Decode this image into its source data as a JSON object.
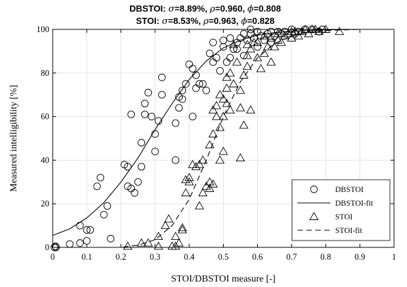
{
  "chart_data": {
    "type": "scatter",
    "title_lines": [
      {
        "name": "DBSTOI",
        "sigma": "8.89%",
        "rho": "0.960",
        "phi": "0.808"
      },
      {
        "name": "STOI",
        "sigma": "8.53%",
        "rho": "0.963",
        "phi": "0.828"
      }
    ],
    "title_symbols": {
      "sigma": "σ",
      "rho": "ρ",
      "phi": "ϕ",
      "eq": "=",
      "sep": ", "
    },
    "xlabel": "STOI/DBSTOI measure [-]",
    "ylabel": "Measured intelligibility [%]",
    "xlim": [
      0,
      1
    ],
    "ylim": [
      0,
      100
    ],
    "xticks": [
      "0",
      "0.1",
      "0.2",
      "0.3",
      "0.4",
      "0.5",
      "0.6",
      "0.7",
      "0.8",
      "0.9",
      "1"
    ],
    "yticks": [
      "0",
      "20",
      "40",
      "60",
      "80",
      "100"
    ],
    "grid": true,
    "legend_position": "bottom-right",
    "legend": [
      {
        "label": "DBSTOI",
        "marker": "circle"
      },
      {
        "label": "DBSTOI-fit",
        "line": "solid"
      },
      {
        "label": "STOI",
        "marker": "triangle"
      },
      {
        "label": "STOI-fit",
        "line": "dashed"
      }
    ],
    "series": [
      {
        "name": "DBSTOI",
        "marker": "circle",
        "points": [
          [
            0.005,
            0
          ],
          [
            0.01,
            0
          ],
          [
            0.008,
            0.5
          ],
          [
            0.05,
            1.5
          ],
          [
            0.08,
            2
          ],
          [
            0.1,
            3
          ],
          [
            0.08,
            10
          ],
          [
            0.1,
            8
          ],
          [
            0.11,
            8
          ],
          [
            0.13,
            28
          ],
          [
            0.14,
            32
          ],
          [
            0.15,
            15
          ],
          [
            0.16,
            19
          ],
          [
            0.17,
            4
          ],
          [
            0.21,
            38
          ],
          [
            0.22,
            37
          ],
          [
            0.22,
            28
          ],
          [
            0.23,
            27
          ],
          [
            0.24,
            25
          ],
          [
            0.25,
            30
          ],
          [
            0.26,
            37
          ],
          [
            0.26,
            48
          ],
          [
            0.27,
            61
          ],
          [
            0.23,
            61
          ],
          [
            0.27,
            66
          ],
          [
            0.28,
            71
          ],
          [
            0.29,
            60
          ],
          [
            0.3,
            52
          ],
          [
            0.31,
            58
          ],
          [
            0.32,
            70
          ],
          [
            0.3,
            44
          ],
          [
            0.32,
            78
          ],
          [
            0.36,
            40
          ],
          [
            0.36,
            57
          ],
          [
            0.37,
            64
          ],
          [
            0.37,
            69
          ],
          [
            0.38,
            72
          ],
          [
            0.38,
            68
          ],
          [
            0.39,
            75
          ],
          [
            0.4,
            84
          ],
          [
            0.41,
            82
          ],
          [
            0.41,
            60
          ],
          [
            0.42,
            73
          ],
          [
            0.42,
            79
          ],
          [
            0.43,
            75
          ],
          [
            0.44,
            75
          ],
          [
            0.45,
            72
          ],
          [
            0.46,
            89
          ],
          [
            0.47,
            85
          ],
          [
            0.48,
            87
          ],
          [
            0.49,
            81
          ],
          [
            0.5,
            95
          ],
          [
            0.5,
            92
          ],
          [
            0.51,
            85
          ],
          [
            0.52,
            96
          ],
          [
            0.52,
            87
          ],
          [
            0.53,
            91
          ],
          [
            0.54,
            94
          ],
          [
            0.55,
            96
          ],
          [
            0.56,
            98
          ],
          [
            0.57,
            95
          ],
          [
            0.58,
            98
          ],
          [
            0.59,
            96
          ],
          [
            0.6,
            99
          ],
          [
            0.61,
            97
          ],
          [
            0.62,
            95
          ],
          [
            0.63,
            98
          ],
          [
            0.64,
            99
          ],
          [
            0.65,
            97
          ],
          [
            0.66,
            99
          ],
          [
            0.67,
            98
          ],
          [
            0.68,
            99
          ],
          [
            0.7,
            100
          ],
          [
            0.71,
            98
          ],
          [
            0.72,
            99
          ],
          [
            0.74,
            100
          ],
          [
            0.76,
            100
          ],
          [
            0.78,
            99
          ],
          [
            0.79,
            100
          ],
          [
            0.6,
            92
          ],
          [
            0.56,
            88
          ],
          [
            0.64,
            94
          ],
          [
            0.54,
            91
          ],
          [
            0.47,
            94
          ],
          [
            0.58,
            100
          ]
        ]
      },
      {
        "name": "DBSTOI-fit",
        "line": "solid",
        "points": [
          [
            0.0,
            5.5
          ],
          [
            0.05,
            8.5
          ],
          [
            0.1,
            13.5
          ],
          [
            0.15,
            20.5
          ],
          [
            0.2,
            30
          ],
          [
            0.25,
            41
          ],
          [
            0.3,
            54
          ],
          [
            0.35,
            66
          ],
          [
            0.4,
            77
          ],
          [
            0.45,
            85.5
          ],
          [
            0.5,
            91.5
          ],
          [
            0.55,
            95
          ],
          [
            0.6,
            97.3
          ],
          [
            0.65,
            98.5
          ],
          [
            0.7,
            99.2
          ],
          [
            0.8,
            99.8
          ],
          [
            0.9,
            100
          ],
          [
            1.0,
            100
          ]
        ]
      },
      {
        "name": "STOI",
        "marker": "triangle",
        "points": [
          [
            0.22,
            0.5
          ],
          [
            0.26,
            2
          ],
          [
            0.28,
            2
          ],
          [
            0.31,
            0.5
          ],
          [
            0.31,
            5
          ],
          [
            0.33,
            10
          ],
          [
            0.34,
            13
          ],
          [
            0.35,
            0.5
          ],
          [
            0.36,
            0.5
          ],
          [
            0.36,
            5
          ],
          [
            0.37,
            2
          ],
          [
            0.38,
            8
          ],
          [
            0.38,
            9
          ],
          [
            0.39,
            25
          ],
          [
            0.39,
            31
          ],
          [
            0.4,
            30
          ],
          [
            0.4,
            32
          ],
          [
            0.41,
            38
          ],
          [
            0.42,
            37
          ],
          [
            0.43,
            38
          ],
          [
            0.43,
            19
          ],
          [
            0.44,
            25
          ],
          [
            0.44,
            40
          ],
          [
            0.45,
            28
          ],
          [
            0.46,
            30
          ],
          [
            0.46,
            47
          ],
          [
            0.47,
            52
          ],
          [
            0.47,
            63
          ],
          [
            0.48,
            60
          ],
          [
            0.48,
            65
          ],
          [
            0.49,
            55
          ],
          [
            0.49,
            70
          ],
          [
            0.5,
            44
          ],
          [
            0.5,
            60
          ],
          [
            0.5,
            68
          ],
          [
            0.51,
            73
          ],
          [
            0.51,
            78
          ],
          [
            0.52,
            63
          ],
          [
            0.52,
            80
          ],
          [
            0.53,
            75
          ],
          [
            0.54,
            85
          ],
          [
            0.55,
            41
          ],
          [
            0.55,
            64
          ],
          [
            0.56,
            56
          ],
          [
            0.56,
            79
          ],
          [
            0.57,
            83
          ],
          [
            0.57,
            88
          ],
          [
            0.58,
            63
          ],
          [
            0.58,
            91
          ],
          [
            0.6,
            87
          ],
          [
            0.6,
            94
          ],
          [
            0.61,
            82
          ],
          [
            0.62,
            89
          ],
          [
            0.63,
            92
          ],
          [
            0.64,
            85
          ],
          [
            0.64,
            96
          ],
          [
            0.65,
            92
          ],
          [
            0.66,
            95
          ],
          [
            0.67,
            94
          ],
          [
            0.68,
            97
          ],
          [
            0.69,
            98
          ],
          [
            0.7,
            96
          ],
          [
            0.71,
            99
          ],
          [
            0.72,
            97
          ],
          [
            0.73,
            99
          ],
          [
            0.74,
            100
          ],
          [
            0.75,
            98
          ],
          [
            0.76,
            100
          ],
          [
            0.77,
            100
          ],
          [
            0.78,
            99
          ],
          [
            0.8,
            100
          ],
          [
            0.84,
            99
          ],
          [
            0.53,
            93
          ],
          [
            0.59,
            94
          ],
          [
            0.62,
            97
          ],
          [
            0.66,
            98
          ],
          [
            0.7,
            99
          ],
          [
            0.47,
            29
          ],
          [
            0.46,
            27
          ],
          [
            0.49,
            40
          ],
          [
            0.51,
            66
          ],
          [
            0.55,
            72
          ],
          [
            0.57,
            93
          ]
        ]
      },
      {
        "name": "STOI-fit",
        "line": "dashed",
        "points": [
          [
            0.05,
            0
          ],
          [
            0.2,
            0
          ],
          [
            0.25,
            1
          ],
          [
            0.3,
            3.5
          ],
          [
            0.35,
            10
          ],
          [
            0.4,
            22
          ],
          [
            0.45,
            40
          ],
          [
            0.5,
            60
          ],
          [
            0.55,
            76
          ],
          [
            0.6,
            87
          ],
          [
            0.65,
            93.5
          ],
          [
            0.7,
            97
          ],
          [
            0.75,
            98.7
          ],
          [
            0.8,
            99.5
          ],
          [
            0.9,
            100
          ],
          [
            1.0,
            100
          ]
        ]
      }
    ]
  }
}
